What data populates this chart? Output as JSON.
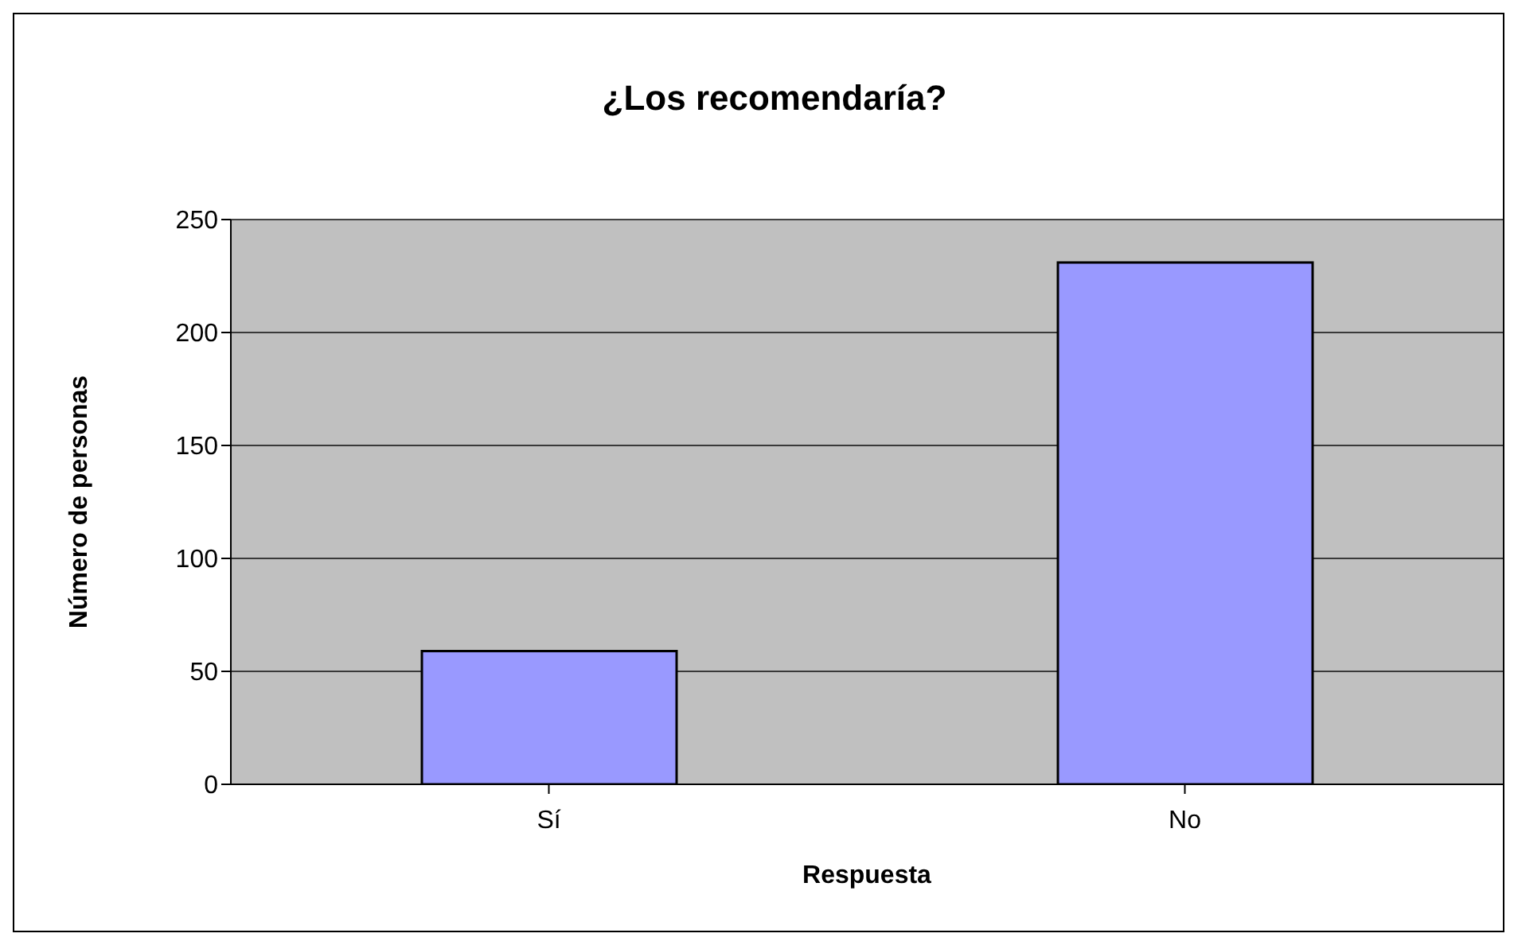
{
  "chart_data": {
    "type": "bar",
    "title": "¿Los recomendaría?",
    "xlabel": "Respuesta",
    "ylabel": "Número de personas",
    "categories": [
      "Sí",
      "No"
    ],
    "values": [
      59,
      231
    ],
    "color": "#9999ff",
    "ylim": [
      0,
      250
    ],
    "yticks": [
      0,
      50,
      100,
      150,
      200,
      250
    ],
    "grid": "y"
  }
}
